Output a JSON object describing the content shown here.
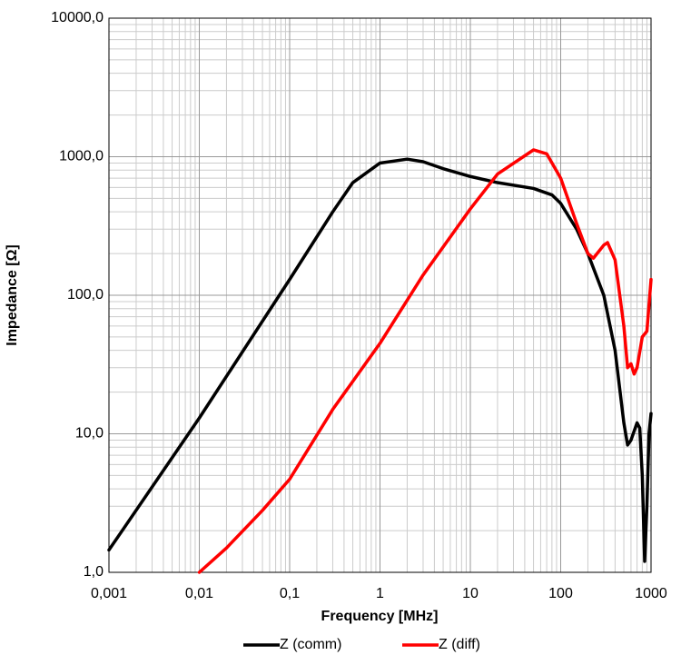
{
  "chart_data": {
    "type": "line",
    "x_label": "Frequency  [MHz]",
    "y_label": "Impedance [Ω]",
    "xscale": "log",
    "yscale": "log",
    "grid": true,
    "minor_grid": true,
    "legend": "bottom",
    "xlim": [
      0.001,
      1000
    ],
    "ylim": [
      1,
      10000
    ],
    "xticks": [
      {
        "value": 0.001,
        "label": "0,001"
      },
      {
        "value": 0.01,
        "label": "0,01"
      },
      {
        "value": 0.1,
        "label": "0,1"
      },
      1,
      10,
      100,
      1000
    ],
    "yticks": [
      {
        "value": 1,
        "label": "1,0"
      },
      {
        "value": 10,
        "label": "10,0"
      },
      {
        "value": 100,
        "label": "100,0"
      },
      {
        "value": 1000,
        "label": "1000,0"
      },
      {
        "value": 10000,
        "label": "10000,0"
      }
    ],
    "series": [
      {
        "name": "Z  (comm)",
        "color": "#000000",
        "x": [
          0.001,
          0.01,
          0.1,
          0.3,
          0.5,
          1,
          2,
          3,
          5,
          10,
          20,
          50,
          80,
          100,
          150,
          200,
          300,
          400,
          500,
          550,
          600,
          700,
          750,
          800,
          850,
          900,
          950,
          1000
        ],
        "values": [
          1.45,
          13,
          130,
          400,
          650,
          900,
          960,
          920,
          820,
          720,
          650,
          590,
          530,
          460,
          300,
          200,
          100,
          40,
          12,
          8.3,
          9,
          12,
          11,
          5,
          1.2,
          3,
          10,
          14
        ]
      },
      {
        "name": "Z (diff)",
        "color": "#ff0000",
        "x": [
          0.01,
          0.02,
          0.05,
          0.1,
          0.3,
          1,
          3,
          10,
          20,
          50,
          70,
          100,
          150,
          200,
          230,
          300,
          330,
          400,
          500,
          550,
          600,
          650,
          700,
          800,
          900,
          1000
        ],
        "values": [
          1.0,
          1.5,
          2.8,
          4.7,
          15,
          45,
          140,
          420,
          750,
          1120,
          1050,
          700,
          330,
          200,
          185,
          230,
          240,
          180,
          60,
          30,
          32,
          27,
          30,
          50,
          55,
          130
        ]
      }
    ]
  }
}
